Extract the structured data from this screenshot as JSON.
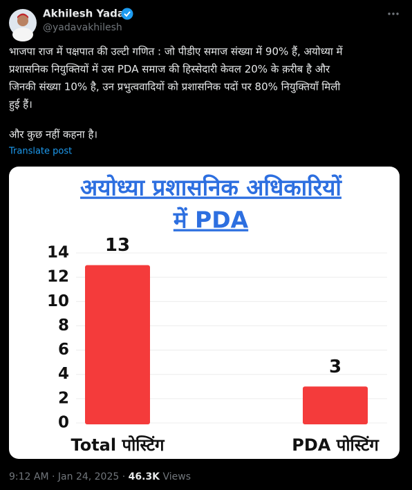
{
  "author": {
    "name": "Akhilesh Yadav",
    "handle": "@yadavakhilesh"
  },
  "body": {
    "lines": [
      "भाजपा राज में पक्षपात की उल्टी गणित : जो पीडीए समाज संख्या में 90% हैं,  अयोध्या में",
      "प्रशासनिक नियुक्तियों में उस PDA समाज की हिस्सेदारी केवल 20% के क़रीब है और",
      "जिनकी संख्या 10% है, उन प्रभुत्ववादियों को प्रशासनिक पदों पर 80% नियुक्तियाँ मिली",
      "हुई हैं।"
    ],
    "closing": "और कुछ नहीं कहना है।"
  },
  "translate": "Translate post",
  "chart_data": {
    "type": "bar",
    "title": [
      "अयोध्या प्रशासनिक अधिकारियों",
      "में PDA"
    ],
    "categories": [
      "Total पोस्टिंग",
      "PDA पोस्टिंग"
    ],
    "values": [
      13,
      3
    ],
    "color": "#f43b3b",
    "ylim": [
      0,
      14
    ],
    "yticks": [
      0,
      2,
      4,
      6,
      8,
      10,
      12,
      14
    ],
    "grid": true
  },
  "footer": {
    "time": "9:12 AM",
    "separator": "·",
    "date": "Jan 24, 2025",
    "views": "46.3K",
    "views_label": "Views"
  }
}
